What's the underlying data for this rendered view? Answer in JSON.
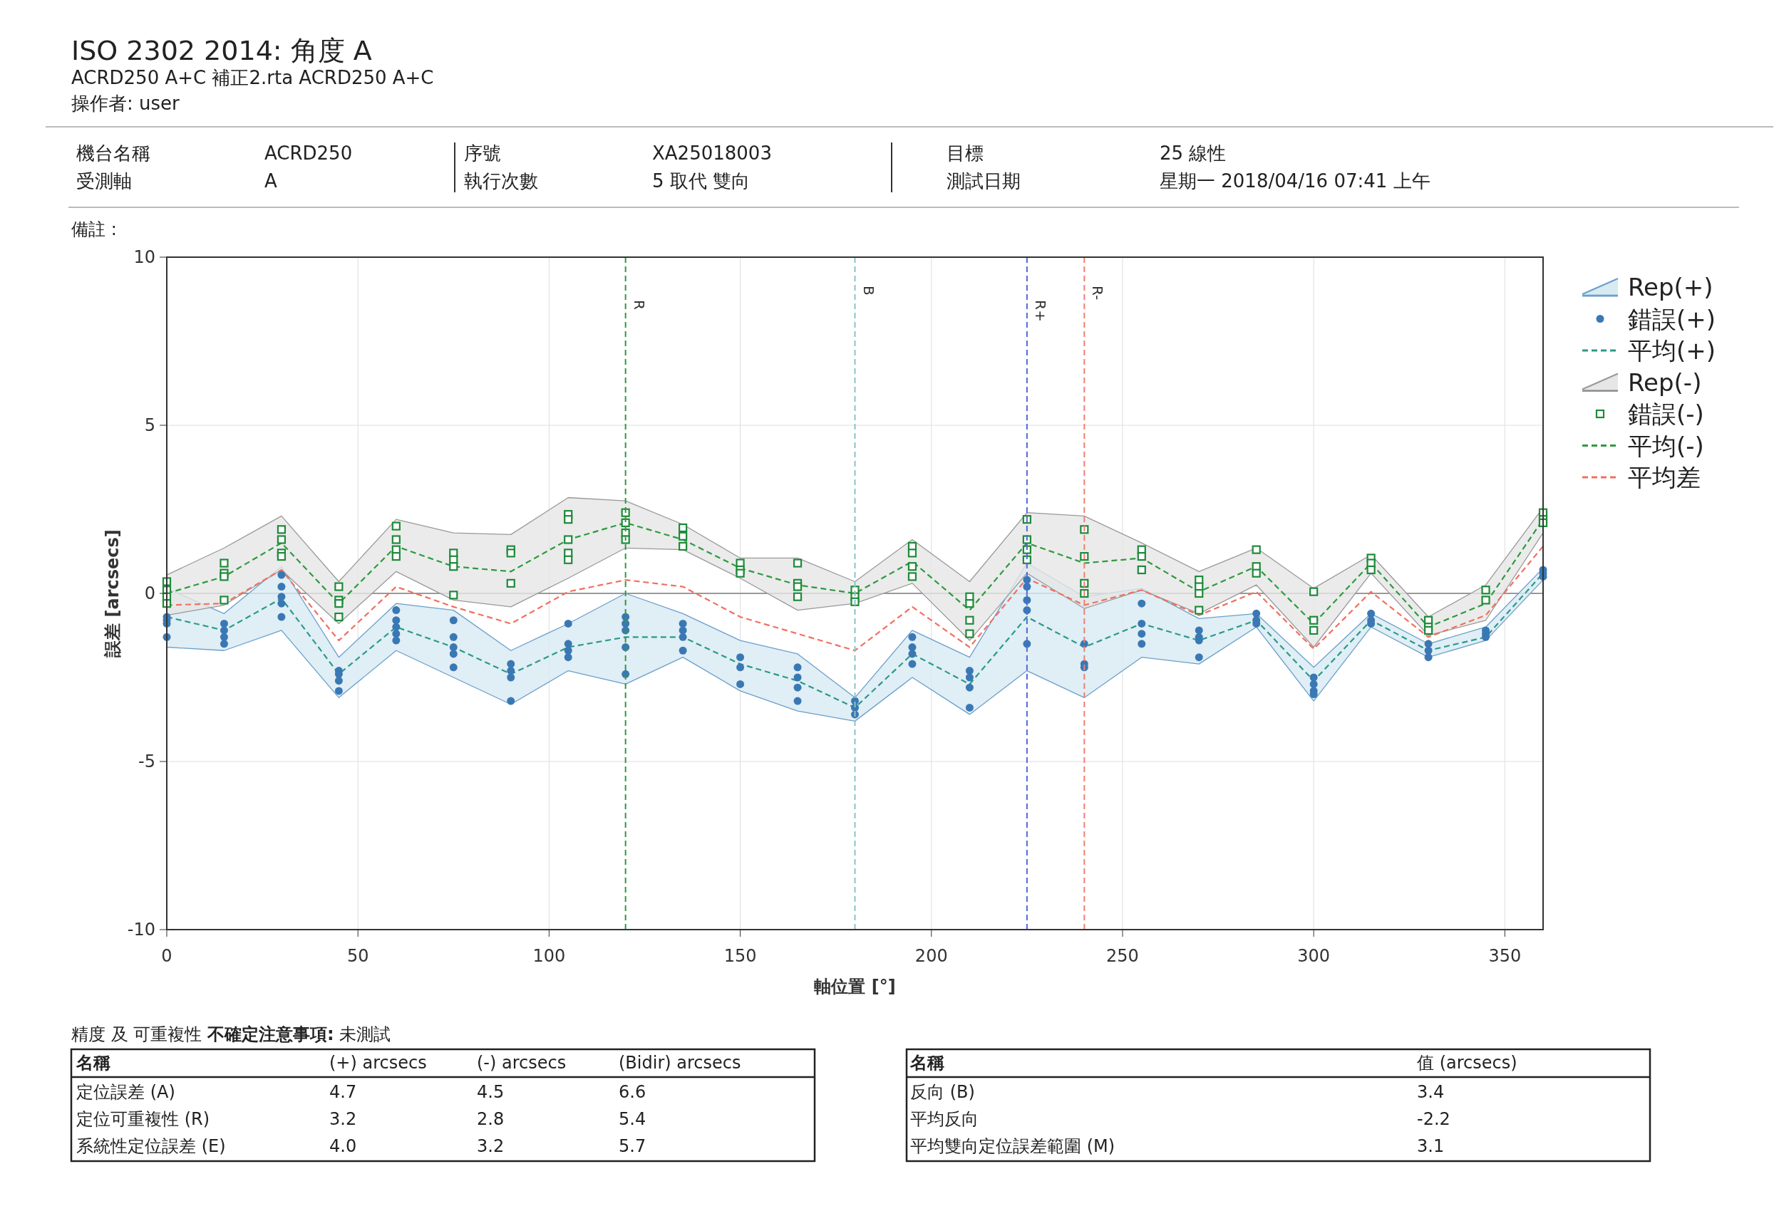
{
  "chart_data": {
    "type": "line",
    "title": "ISO 2302 2014: 角度 A",
    "subtitle": "ACRD250 A+C 補正2.rta ACRD250 A+C",
    "xlabel": "軸位置 [°]",
    "ylabel": "誤差 [arcsecs]",
    "x": [
      0,
      15,
      30,
      45,
      60,
      75,
      90,
      105,
      120,
      135,
      150,
      165,
      180,
      195,
      210,
      225,
      240,
      255,
      270,
      285,
      300,
      315,
      330,
      345,
      360
    ],
    "xlim": [
      0,
      360
    ],
    "xticks": [
      0,
      50,
      100,
      150,
      200,
      250,
      300,
      350
    ],
    "ylim": [
      -10,
      10
    ],
    "yticks": [
      -10,
      -5,
      0,
      5,
      10
    ],
    "grid": true,
    "legend": "right",
    "series": [
      {
        "name": "錯誤(+)",
        "type": "scatter",
        "marker": "circle",
        "color": "#3a78b4",
        "x": [
          0,
          0,
          0,
          0,
          15,
          15,
          15,
          15,
          30,
          30,
          30,
          30,
          30,
          45,
          45,
          45,
          45,
          60,
          60,
          60,
          60,
          60,
          75,
          75,
          75,
          75,
          75,
          90,
          90,
          90,
          90,
          105,
          105,
          105,
          105,
          120,
          120,
          120,
          120,
          120,
          135,
          135,
          135,
          135,
          150,
          150,
          150,
          165,
          165,
          165,
          165,
          180,
          180,
          180,
          195,
          195,
          195,
          195,
          210,
          210,
          210,
          210,
          225,
          225,
          225,
          225,
          225,
          240,
          240,
          240,
          255,
          255,
          255,
          255,
          270,
          270,
          270,
          270,
          285,
          285,
          285,
          300,
          300,
          300,
          300,
          315,
          315,
          315,
          330,
          330,
          330,
          345,
          345,
          345,
          360,
          360,
          360
        ],
        "values": [
          -0.7,
          -0.8,
          -0.9,
          -1.3,
          -0.9,
          -1.1,
          -1.3,
          -1.5,
          0.55,
          0.2,
          -0.1,
          -0.3,
          -0.7,
          -2.3,
          -2.4,
          -2.6,
          -2.9,
          -0.5,
          -0.8,
          -1.0,
          -1.2,
          -1.4,
          -0.8,
          -1.3,
          -1.6,
          -1.8,
          -2.2,
          -2.1,
          -2.3,
          -2.5,
          -3.2,
          -0.9,
          -1.5,
          -1.7,
          -1.9,
          -0.7,
          -0.9,
          -1.1,
          -1.6,
          -2.4,
          -0.9,
          -1.1,
          -1.3,
          -1.7,
          -1.9,
          -2.2,
          -2.7,
          -2.2,
          -2.5,
          -2.8,
          -3.2,
          -3.2,
          -3.4,
          -3.6,
          -1.3,
          -1.6,
          -1.8,
          -2.1,
          -2.3,
          -2.5,
          -2.8,
          -3.4,
          0.4,
          0.2,
          -0.2,
          -0.5,
          -1.5,
          -1.5,
          -2.1,
          -2.2,
          -0.3,
          -0.9,
          -1.2,
          -1.5,
          -1.1,
          -1.3,
          -1.4,
          -1.9,
          -0.6,
          -0.8,
          -0.9,
          -2.5,
          -2.7,
          -2.9,
          -3.0,
          -0.6,
          -0.8,
          -0.9,
          -1.5,
          -1.7,
          -1.9,
          -1.1,
          -1.2,
          -1.3,
          0.5,
          0.6,
          0.7
        ]
      },
      {
        "name": "平均(+)",
        "type": "line",
        "line_style": "dashed",
        "marker": "none",
        "color": "#2a9a8a",
        "values": [
          -0.7,
          -1.1,
          -0.15,
          -2.4,
          -1.0,
          -1.6,
          -2.4,
          -1.6,
          -1.3,
          -1.3,
          -2.1,
          -2.6,
          -3.4,
          -1.8,
          -2.7,
          -0.7,
          -1.6,
          -0.9,
          -1.4,
          -0.8,
          -2.6,
          -0.8,
          -1.7,
          -1.3,
          0.6
        ],
        "lower": [
          -1.6,
          -1.7,
          -1.1,
          -3.1,
          -1.7,
          -2.5,
          -3.3,
          -2.3,
          -2.7,
          -1.9,
          -2.9,
          -3.5,
          -3.8,
          -2.5,
          -3.6,
          -2.3,
          -3.1,
          -1.9,
          -2.1,
          -1.0,
          -3.2,
          -1.0,
          -1.9,
          -1.4,
          0.4
        ],
        "upper": [
          0.15,
          -0.6,
          0.8,
          -1.9,
          -0.3,
          -0.5,
          -1.7,
          -0.9,
          0.0,
          -0.6,
          -1.4,
          -1.8,
          -3.1,
          -1.1,
          -1.9,
          0.9,
          -0.1,
          0.15,
          -0.75,
          -0.6,
          -2.2,
          -0.6,
          -1.5,
          -1.0,
          0.75
        ]
      },
      {
        "name": "錯誤(-)",
        "type": "scatter",
        "marker": "square",
        "color": "#1e8a3a",
        "x": [
          0,
          0,
          0,
          0,
          15,
          15,
          15,
          15,
          30,
          30,
          30,
          30,
          45,
          45,
          45,
          45,
          60,
          60,
          60,
          60,
          75,
          75,
          75,
          75,
          90,
          90,
          90,
          105,
          105,
          105,
          105,
          105,
          120,
          120,
          120,
          120,
          135,
          135,
          135,
          150,
          150,
          150,
          165,
          165,
          165,
          165,
          180,
          180,
          180,
          195,
          195,
          195,
          195,
          210,
          210,
          210,
          210,
          225,
          225,
          225,
          225,
          240,
          240,
          240,
          240,
          255,
          255,
          255,
          270,
          270,
          270,
          270,
          285,
          285,
          285,
          300,
          300,
          300,
          315,
          315,
          315,
          330,
          330,
          330,
          345,
          345,
          360,
          360,
          360
        ],
        "values": [
          0.35,
          0.1,
          -0.1,
          -0.3,
          0.9,
          0.6,
          0.5,
          -0.2,
          1.9,
          1.6,
          1.2,
          1.1,
          0.2,
          -0.2,
          -0.3,
          -0.7,
          2.0,
          1.6,
          1.3,
          1.1,
          1.2,
          1.0,
          0.8,
          -0.05,
          1.3,
          1.2,
          0.3,
          2.35,
          2.2,
          1.6,
          1.2,
          1.0,
          2.4,
          2.1,
          1.8,
          1.6,
          1.95,
          1.7,
          1.4,
          0.9,
          0.7,
          0.6,
          0.9,
          0.3,
          0.2,
          -0.1,
          0.1,
          -0.1,
          -0.25,
          1.4,
          1.2,
          0.8,
          0.5,
          -0.1,
          -0.3,
          -0.8,
          -1.2,
          2.2,
          1.6,
          1.3,
          1.0,
          1.9,
          1.1,
          0.3,
          0.0,
          1.3,
          1.1,
          0.7,
          0.4,
          0.2,
          0.0,
          -0.5,
          1.3,
          0.8,
          0.6,
          0.05,
          -0.8,
          -1.1,
          1.05,
          0.9,
          0.7,
          -0.8,
          -1.0,
          -1.1,
          0.1,
          -0.2,
          2.4,
          2.2,
          2.1
        ]
      },
      {
        "name": "平均(-)",
        "type": "line",
        "line_style": "dashed",
        "marker": "none",
        "color": "#2e9a3e",
        "values": [
          0.0,
          0.5,
          1.5,
          -0.3,
          1.4,
          0.8,
          0.65,
          1.6,
          2.1,
          1.6,
          0.75,
          0.25,
          0.0,
          0.95,
          -0.5,
          1.5,
          0.9,
          1.05,
          0.05,
          0.8,
          -0.9,
          0.9,
          -1.0,
          -0.3,
          2.2
        ],
        "lower": [
          -0.65,
          -0.35,
          0.7,
          -0.9,
          0.65,
          -0.2,
          -0.4,
          0.45,
          1.35,
          1.3,
          0.45,
          -0.5,
          -0.3,
          0.3,
          -1.4,
          0.6,
          -0.45,
          0.1,
          -0.6,
          0.25,
          -1.6,
          0.6,
          -1.25,
          -0.8,
          1.8
        ],
        "upper": [
          0.55,
          1.35,
          2.3,
          0.35,
          2.2,
          1.8,
          1.75,
          2.85,
          2.75,
          2.05,
          1.05,
          1.05,
          0.35,
          1.6,
          0.35,
          2.4,
          2.3,
          1.5,
          0.65,
          1.35,
          0.15,
          1.15,
          -0.7,
          0.25,
          2.55
        ]
      },
      {
        "name": "平均差",
        "type": "line",
        "line_style": "dashed",
        "marker": "none",
        "color": "#f07060",
        "values": [
          -0.35,
          -0.3,
          0.7,
          -1.4,
          0.2,
          -0.4,
          -0.9,
          0.05,
          0.4,
          0.2,
          -0.7,
          -1.2,
          -1.7,
          -0.4,
          -1.6,
          0.45,
          -0.35,
          0.1,
          -0.65,
          0.05,
          -1.65,
          0.05,
          -1.3,
          -0.65,
          1.4
        ]
      }
    ],
    "ref_lines": [
      {
        "axis": "x",
        "value": 120,
        "label": "R",
        "color": "#2e9a3e",
        "line_style": "dashed"
      },
      {
        "axis": "x",
        "value": 180,
        "label": "B",
        "color": "#8cc4c4",
        "line_style": "dashed"
      },
      {
        "axis": "x",
        "value": 225,
        "label": "R+",
        "color": "#5068d8",
        "line_style": "dashed"
      },
      {
        "axis": "x",
        "value": 240,
        "label": "R-",
        "color": "#f08070",
        "line_style": "dashed"
      }
    ],
    "annotations": [
      "操作者: user",
      "機台名稱",
      "ACRD250",
      "序號",
      "XA25018003",
      "目標",
      "25 線性",
      "受測軸",
      "A",
      "執行次數",
      "5 取代 雙向",
      "測試日期",
      "星期一 2018/04/16 07:41 上午",
      "備註 :",
      "精度 及 可重複性",
      "不確定注意事項:",
      "未測試",
      "名稱",
      "(+) arcsecs",
      "(-) arcsecs",
      "(Bidir) arcsecs",
      "定位誤差 (A)",
      "4.7",
      "4.5",
      "6.6",
      "定位可重複性 (R)",
      "3.2",
      "2.8",
      "5.4",
      "系統性定位誤差 (E)",
      "4.0",
      "3.2",
      "5.7",
      "名稱",
      "值 (arcsecs)",
      "反向 (B)",
      "3.4",
      "平均反向",
      "-2.2",
      "平均雙向定位誤差範圍 (M)",
      "3.1",
      "Rep(+)",
      "Rep(-)"
    ]
  }
}
